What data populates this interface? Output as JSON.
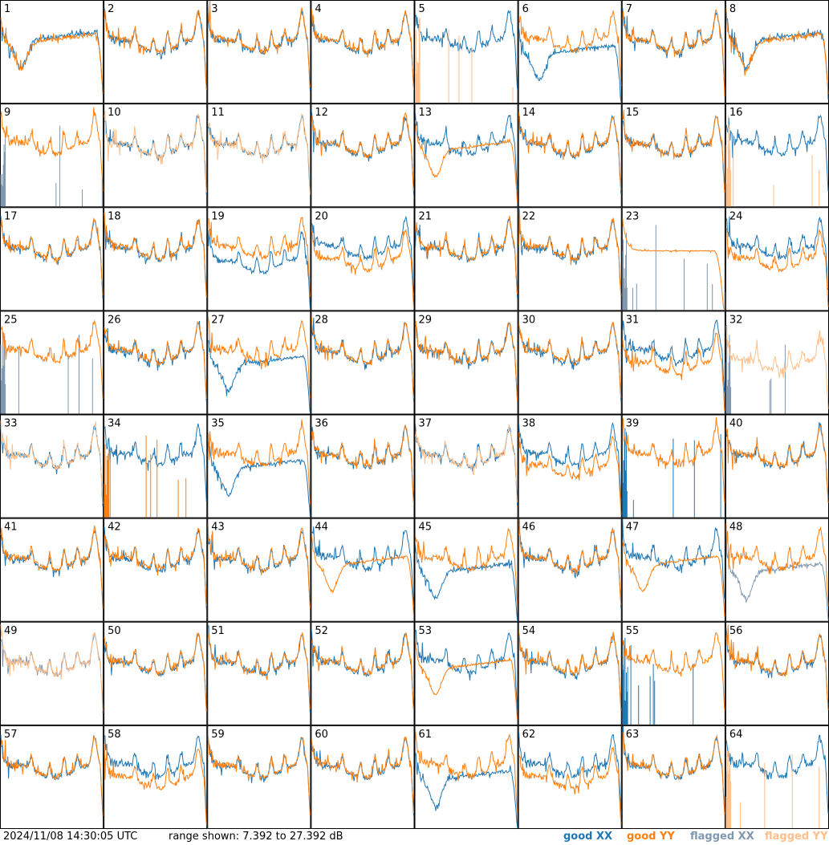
{
  "footer": {
    "timestamp": "2024/11/08 14:30:05 UTC",
    "range_text": "range shown: 7.392 to 27.392 dB"
  },
  "colors": {
    "good_xx": "#1f77b4",
    "good_yy": "#ff7f0e",
    "flagged_xx": "#7f98b0",
    "flagged_yy": "#ffbf8a"
  },
  "chart_data": {
    "type": "line",
    "title": "",
    "xlabel": "",
    "ylabel": "",
    "y_range_db": [
      7.392,
      27.392
    ],
    "grid_rows": 8,
    "grid_cols": 8,
    "legend": {
      "placement": "bottom-right",
      "entries": [
        {
          "label": "good XX",
          "color": "#1f77b4"
        },
        {
          "label": "good YY",
          "color": "#ff7f0e"
        },
        {
          "label": "flagged XX",
          "color": "#7f98b0"
        },
        {
          "label": "flagged YY",
          "color": "#ffbf8a"
        }
      ]
    },
    "panels": [
      {
        "id": "1",
        "x": "good",
        "y": "good",
        "shape": "earlydip"
      },
      {
        "id": "2",
        "x": "good",
        "y": "good",
        "shape": "normal"
      },
      {
        "id": "3",
        "x": "good",
        "y": "good",
        "shape": "normal"
      },
      {
        "id": "4",
        "x": "good",
        "y": "good",
        "shape": "normal"
      },
      {
        "id": "5",
        "x": "good",
        "y": "flagged",
        "shape": "xonly"
      },
      {
        "id": "6",
        "x": "good",
        "y": "good",
        "shape": "xdip"
      },
      {
        "id": "7",
        "x": "good",
        "y": "good",
        "shape": "normal"
      },
      {
        "id": "8",
        "x": "good",
        "y": "good",
        "shape": "earlydip"
      },
      {
        "id": "9",
        "x": "flagged",
        "y": "good",
        "shape": "yonly"
      },
      {
        "id": "10",
        "x": "good",
        "y": "flagged",
        "shape": "ylight"
      },
      {
        "id": "11",
        "x": "good",
        "y": "flagged",
        "shape": "ylight"
      },
      {
        "id": "12",
        "x": "good",
        "y": "good",
        "shape": "normal"
      },
      {
        "id": "13",
        "x": "good",
        "y": "good",
        "shape": "ydip"
      },
      {
        "id": "14",
        "x": "good",
        "y": "good",
        "shape": "normal"
      },
      {
        "id": "15",
        "x": "good",
        "y": "good",
        "shape": "normal"
      },
      {
        "id": "16",
        "x": "good",
        "y": "flagged",
        "shape": "xonly"
      },
      {
        "id": "17",
        "x": "good",
        "y": "good",
        "shape": "normal"
      },
      {
        "id": "18",
        "x": "good",
        "y": "good",
        "shape": "normal"
      },
      {
        "id": "19",
        "x": "good",
        "y": "good",
        "shape": "xlow"
      },
      {
        "id": "20",
        "x": "good",
        "y": "good",
        "shape": "ylow"
      },
      {
        "id": "21",
        "x": "good",
        "y": "good",
        "shape": "normal"
      },
      {
        "id": "22",
        "x": "good",
        "y": "good",
        "shape": "normal"
      },
      {
        "id": "23",
        "x": "flagged",
        "y": "good",
        "shape": "yflat"
      },
      {
        "id": "24",
        "x": "good",
        "y": "good",
        "shape": "ylow"
      },
      {
        "id": "25",
        "x": "flagged",
        "y": "good",
        "shape": "yonly"
      },
      {
        "id": "26",
        "x": "good",
        "y": "good",
        "shape": "normal"
      },
      {
        "id": "27",
        "x": "good",
        "y": "good",
        "shape": "xdip"
      },
      {
        "id": "28",
        "x": "good",
        "y": "good",
        "shape": "normal"
      },
      {
        "id": "29",
        "x": "good",
        "y": "good",
        "shape": "normal"
      },
      {
        "id": "30",
        "x": "good",
        "y": "good",
        "shape": "normal"
      },
      {
        "id": "31",
        "x": "good",
        "y": "good",
        "shape": "ylow"
      },
      {
        "id": "32",
        "x": "flagged",
        "y": "flagged",
        "shape": "yflagonly"
      },
      {
        "id": "33",
        "x": "good",
        "y": "flagged",
        "shape": "ylight"
      },
      {
        "id": "34",
        "x": "good",
        "y": "good",
        "shape": "xonly_yspikes"
      },
      {
        "id": "35",
        "x": "good",
        "y": "good",
        "shape": "xdip"
      },
      {
        "id": "36",
        "x": "good",
        "y": "good",
        "shape": "normal"
      },
      {
        "id": "37",
        "x": "good",
        "y": "flagged",
        "shape": "ylight"
      },
      {
        "id": "38",
        "x": "good",
        "y": "good",
        "shape": "ylow"
      },
      {
        "id": "39",
        "x": "good",
        "y": "good",
        "shape": "yonly"
      },
      {
        "id": "40",
        "x": "good",
        "y": "good",
        "shape": "normal"
      },
      {
        "id": "41",
        "x": "good",
        "y": "good",
        "shape": "normal"
      },
      {
        "id": "42",
        "x": "good",
        "y": "good",
        "shape": "normal"
      },
      {
        "id": "43",
        "x": "good",
        "y": "good",
        "shape": "normal"
      },
      {
        "id": "44",
        "x": "good",
        "y": "good",
        "shape": "ydip"
      },
      {
        "id": "45",
        "x": "good",
        "y": "good",
        "shape": "xdip"
      },
      {
        "id": "46",
        "x": "good",
        "y": "good",
        "shape": "normal"
      },
      {
        "id": "47",
        "x": "good",
        "y": "good",
        "shape": "ydip"
      },
      {
        "id": "48",
        "x": "flagged",
        "y": "good",
        "shape": "xdip"
      },
      {
        "id": "49",
        "x": "flagged",
        "y": "flagged",
        "shape": "ylight"
      },
      {
        "id": "50",
        "x": "good",
        "y": "good",
        "shape": "normal"
      },
      {
        "id": "51",
        "x": "good",
        "y": "good",
        "shape": "normal"
      },
      {
        "id": "52",
        "x": "good",
        "y": "good",
        "shape": "normal"
      },
      {
        "id": "53",
        "x": "good",
        "y": "good",
        "shape": "ydip"
      },
      {
        "id": "54",
        "x": "good",
        "y": "good",
        "shape": "normal"
      },
      {
        "id": "55",
        "x": "good",
        "y": "good",
        "shape": "yonly_xspikes"
      },
      {
        "id": "56",
        "x": "good",
        "y": "good",
        "shape": "normal"
      },
      {
        "id": "57",
        "x": "good",
        "y": "good",
        "shape": "normal"
      },
      {
        "id": "58",
        "x": "good",
        "y": "good",
        "shape": "ylow"
      },
      {
        "id": "59",
        "x": "good",
        "y": "good",
        "shape": "normal"
      },
      {
        "id": "60",
        "x": "good",
        "y": "good",
        "shape": "normal"
      },
      {
        "id": "61",
        "x": "good",
        "y": "good",
        "shape": "xdip"
      },
      {
        "id": "62",
        "x": "good",
        "y": "good",
        "shape": "ylow"
      },
      {
        "id": "63",
        "x": "good",
        "y": "good",
        "shape": "normal"
      },
      {
        "id": "64",
        "x": "good",
        "y": "flagged",
        "shape": "xonly"
      }
    ]
  }
}
